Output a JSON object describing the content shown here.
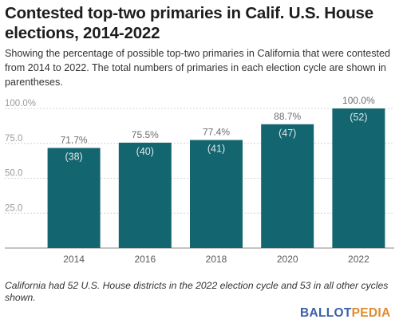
{
  "chart_data": {
    "type": "bar",
    "title": "Contested top-two primaries in Calif. U.S. House elections, 2014-2022",
    "subtitle": "Showing the percentage of possible top-two primaries in California that were contested from 2014 to 2022. The total numbers of primaries in each election cycle are shown in parentheses.",
    "categories": [
      "2014",
      "2016",
      "2018",
      "2020",
      "2022"
    ],
    "values": [
      71.7,
      75.5,
      77.4,
      88.7,
      100.0
    ],
    "value_labels": [
      "71.7%",
      "75.5%",
      "77.4%",
      "88.7%",
      "100.0%"
    ],
    "count_labels": [
      "(38)",
      "(40)",
      "(41)",
      "(47)",
      "(52)"
    ],
    "ylim": [
      0,
      100
    ],
    "yticks": [
      "25.0",
      "50.0",
      "75.0",
      "100.0%"
    ],
    "ytick_values": [
      25,
      50,
      75,
      100
    ],
    "grid": true,
    "bar_color": "#13656f",
    "footnote": "California had 52 U.S. House districts in the 2022 election cycle and 53 in all other cycles shown."
  },
  "brand": {
    "part1": "BALLOT",
    "part2": "PEDIA",
    "color1": "#3a5fa8",
    "color2": "#e08a2e"
  }
}
